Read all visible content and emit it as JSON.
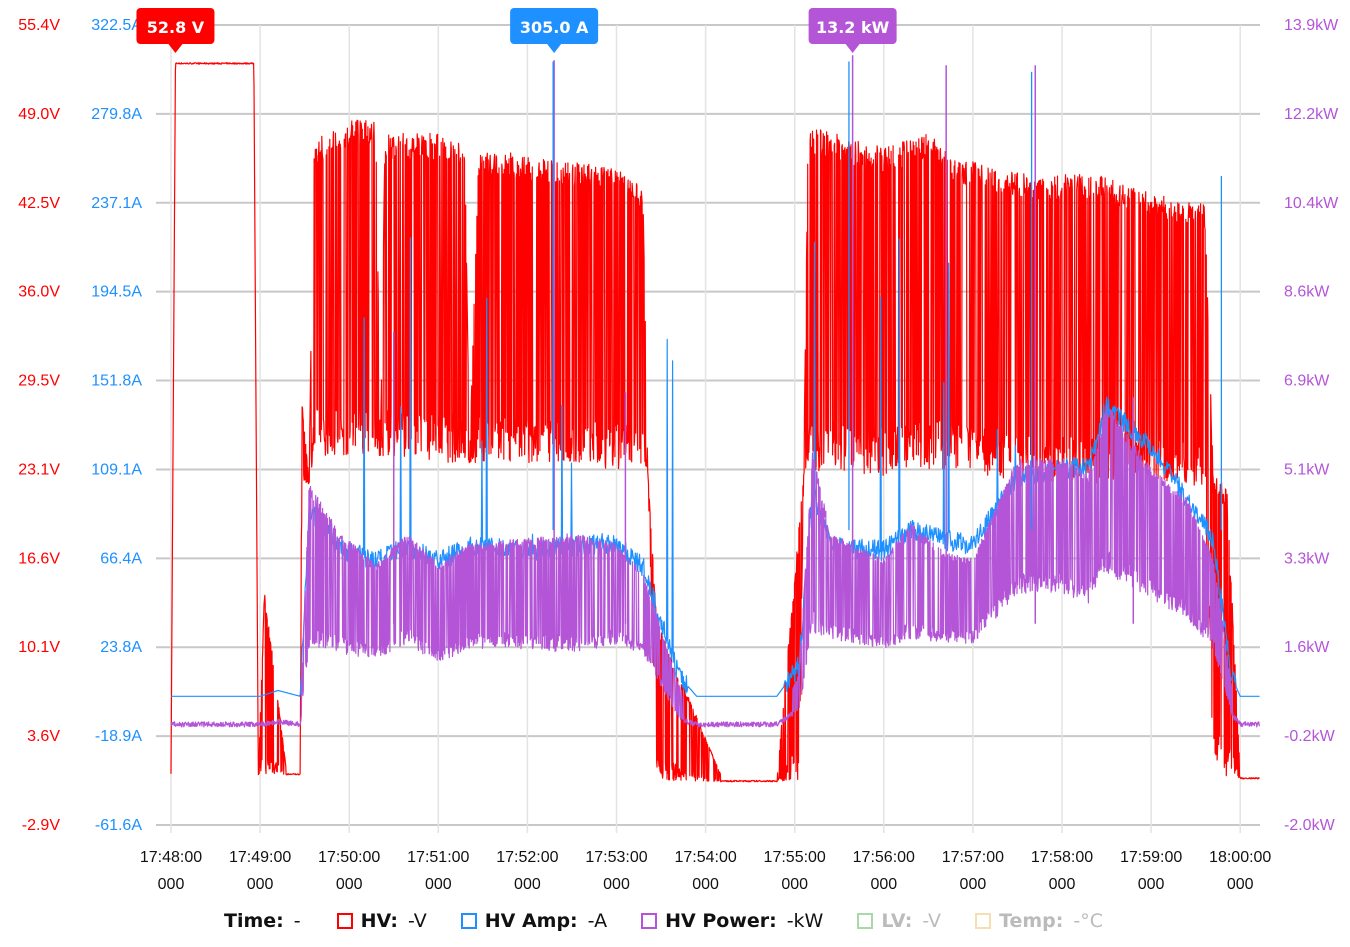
{
  "chart_data": {
    "type": "line",
    "axes": {
      "voltage": {
        "ticks": [
          "55.4V",
          "49.0V",
          "42.5V",
          "36.0V",
          "29.5V",
          "23.1V",
          "16.6V",
          "10.1V",
          "3.6V",
          "-2.9V"
        ],
        "min": -2.9,
        "max": 55.4,
        "color": "#ff0000"
      },
      "current": {
        "ticks": [
          "322.5A",
          "279.8A",
          "237.1A",
          "194.5A",
          "151.8A",
          "109.1A",
          "66.4A",
          "23.8A",
          "-18.9A",
          "-61.6A"
        ],
        "min": -61.6,
        "max": 322.5,
        "color": "#1e90ff"
      },
      "power": {
        "ticks": [
          "13.9kW",
          "12.2kW",
          "10.4kW",
          "8.6kW",
          "6.9kW",
          "5.1kW",
          "3.3kW",
          "1.6kW",
          "-0.2kW",
          "-2.0kW"
        ],
        "min": -2.0,
        "max": 13.9,
        "color": "#b455d8"
      }
    },
    "x_ticks": [
      {
        "time": "17:48:00",
        "ms": "000"
      },
      {
        "time": "17:49:00",
        "ms": "000"
      },
      {
        "time": "17:50:00",
        "ms": "000"
      },
      {
        "time": "17:51:00",
        "ms": "000"
      },
      {
        "time": "17:52:00",
        "ms": "000"
      },
      {
        "time": "17:53:00",
        "ms": "000"
      },
      {
        "time": "17:54:00",
        "ms": "000"
      },
      {
        "time": "17:55:00",
        "ms": "000"
      },
      {
        "time": "17:56:00",
        "ms": "000"
      },
      {
        "time": "17:57:00",
        "ms": "000"
      },
      {
        "time": "17:58:00",
        "ms": "000"
      },
      {
        "time": "17:59:00",
        "ms": "000"
      },
      {
        "time": "18:00:00",
        "ms": "000"
      }
    ],
    "grid": true,
    "series": [
      {
        "name": "HV",
        "color": "#ff0000",
        "axis": "voltage",
        "envelope_minutes": [
          [
            0.0,
            0.8,
            0.8
          ],
          [
            0.05,
            52.6,
            52.6
          ],
          [
            0.93,
            52.6,
            52.6
          ],
          [
            0.98,
            0.8,
            0.8
          ],
          [
            1.05,
            0.8,
            14.5
          ],
          [
            1.3,
            0.8,
            0.8
          ],
          [
            1.45,
            0.8,
            0.8
          ],
          [
            1.47,
            22,
            28
          ],
          [
            1.55,
            22,
            22
          ],
          [
            1.6,
            24,
            47
          ],
          [
            2.05,
            24,
            48.5
          ],
          [
            2.3,
            24,
            48.5
          ],
          [
            2.35,
            24,
            24
          ],
          [
            2.4,
            24,
            47.5
          ],
          [
            2.95,
            23.5,
            47.5
          ],
          [
            3.3,
            23.5,
            47
          ],
          [
            3.35,
            23.5,
            23.5
          ],
          [
            3.45,
            23.5,
            46.5
          ],
          [
            4.3,
            23.5,
            45.5
          ],
          [
            5.0,
            23,
            45.2
          ],
          [
            5.3,
            23,
            43.5
          ],
          [
            5.35,
            23,
            23
          ],
          [
            5.45,
            0.3,
            12
          ],
          [
            5.9,
            0.3,
            5
          ],
          [
            6.2,
            0.3,
            0.3
          ],
          [
            6.8,
            0.3,
            0.3
          ],
          [
            6.9,
            0.3,
            8
          ],
          [
            7.05,
            0.3,
            19
          ],
          [
            7.1,
            22.5,
            22.5
          ],
          [
            7.15,
            23,
            48
          ],
          [
            8.0,
            22.5,
            46.5
          ],
          [
            8.5,
            23,
            47.5
          ],
          [
            8.75,
            23,
            46
          ],
          [
            9.2,
            22.5,
            45
          ],
          [
            9.7,
            22,
            44.5
          ],
          [
            10.4,
            22,
            44.5
          ],
          [
            10.8,
            22,
            43.5
          ],
          [
            11.1,
            22,
            43
          ],
          [
            11.35,
            22,
            42.5
          ],
          [
            11.6,
            21.5,
            42.5
          ],
          [
            11.7,
            0.5,
            22.5
          ],
          [
            11.85,
            0.5,
            22
          ],
          [
            12.0,
            0.5,
            0.8
          ],
          [
            12.22,
            0.5,
            0.5
          ]
        ]
      },
      {
        "name": "HV Amp",
        "color": "#1e90ff",
        "axis": "current",
        "baseline_minutes": [
          [
            0.0,
            0.2
          ],
          [
            1.0,
            0.2
          ],
          [
            1.2,
            3.0
          ],
          [
            1.45,
            0.2
          ],
          [
            1.55,
            90
          ],
          [
            1.9,
            71
          ],
          [
            2.3,
            65
          ],
          [
            2.65,
            72
          ],
          [
            3.0,
            65
          ],
          [
            3.35,
            72
          ],
          [
            4.0,
            70
          ],
          [
            4.5,
            72
          ],
          [
            5.0,
            74
          ],
          [
            5.3,
            62
          ],
          [
            5.7,
            10
          ],
          [
            5.9,
            0.2
          ],
          [
            6.8,
            0.2
          ],
          [
            7.05,
            15
          ],
          [
            7.2,
            100
          ],
          [
            7.4,
            72
          ],
          [
            8.0,
            70
          ],
          [
            8.3,
            80
          ],
          [
            8.7,
            75
          ],
          [
            9.0,
            73
          ],
          [
            9.5,
            105
          ],
          [
            10.0,
            110
          ],
          [
            10.3,
            110
          ],
          [
            10.5,
            140
          ],
          [
            10.8,
            128
          ],
          [
            11.0,
            120
          ],
          [
            11.4,
            95
          ],
          [
            11.7,
            75
          ],
          [
            11.9,
            10
          ],
          [
            12.0,
            0.2
          ],
          [
            12.22,
            0.2
          ]
        ]
      },
      {
        "name": "HV Power",
        "color": "#b455d8",
        "axis": "power",
        "envelope_minutes": [
          [
            0.0,
            0.0,
            0.0
          ],
          [
            1.0,
            0.0,
            0.0
          ],
          [
            1.2,
            0.05,
            0.2
          ],
          [
            1.45,
            0.0,
            0.0
          ],
          [
            1.55,
            1.5,
            4.8
          ],
          [
            1.9,
            1.4,
            3.8
          ],
          [
            2.3,
            1.3,
            3.2
          ],
          [
            2.65,
            1.6,
            3.8
          ],
          [
            3.0,
            1.2,
            3.2
          ],
          [
            3.35,
            1.5,
            3.6
          ],
          [
            4.0,
            1.5,
            3.7
          ],
          [
            4.5,
            1.4,
            3.8
          ],
          [
            5.0,
            1.6,
            3.6
          ],
          [
            5.3,
            1.4,
            3.0
          ],
          [
            5.7,
            0.1,
            0.8
          ],
          [
            5.9,
            0.0,
            0.0
          ],
          [
            6.8,
            0.0,
            0.0
          ],
          [
            7.05,
            0.3,
            1.0
          ],
          [
            7.2,
            1.8,
            5.5
          ],
          [
            7.4,
            1.7,
            3.8
          ],
          [
            8.0,
            1.5,
            3.3
          ],
          [
            8.3,
            1.7,
            4.0
          ],
          [
            8.7,
            1.6,
            3.4
          ],
          [
            9.0,
            1.6,
            3.3
          ],
          [
            9.5,
            2.6,
            5.3
          ],
          [
            10.0,
            2.6,
            5.3
          ],
          [
            10.3,
            2.4,
            5.0
          ],
          [
            10.5,
            3.0,
            6.4
          ],
          [
            10.8,
            2.7,
            5.6
          ],
          [
            11.0,
            2.5,
            5.1
          ],
          [
            11.4,
            2.1,
            4.5
          ],
          [
            11.7,
            1.5,
            3.3
          ],
          [
            11.9,
            0.2,
            0.8
          ],
          [
            12.0,
            0.0,
            0.0
          ],
          [
            12.22,
            0.0,
            0.0
          ]
        ]
      }
    ],
    "markers": [
      {
        "label": "52.8 V",
        "series": "HV",
        "minute": 0.05,
        "value": 52.8,
        "color": "#ff0000"
      },
      {
        "label": "305.0 A",
        "series": "HV Amp",
        "minute": 4.3,
        "value": 305.0,
        "color": "#1e90ff"
      },
      {
        "label": "13.2 kW",
        "series": "HV Power",
        "minute": 7.65,
        "value": 13.2,
        "color": "#b455d8"
      }
    ]
  },
  "legend": {
    "time": {
      "label": "Time:",
      "value": "-"
    },
    "items": [
      {
        "label": "HV:",
        "value": "-V",
        "color": "#ff0000",
        "enabled": true
      },
      {
        "label": "HV Amp:",
        "value": "-A",
        "color": "#1e90ff",
        "enabled": true
      },
      {
        "label": "HV Power:",
        "value": "-kW",
        "color": "#b455d8",
        "enabled": true
      },
      {
        "label": "LV:",
        "value": "-V",
        "color": "#a9d9a9",
        "enabled": false
      },
      {
        "label": "Temp:",
        "value": "-°C",
        "color": "#f5deb3",
        "enabled": false
      }
    ]
  }
}
